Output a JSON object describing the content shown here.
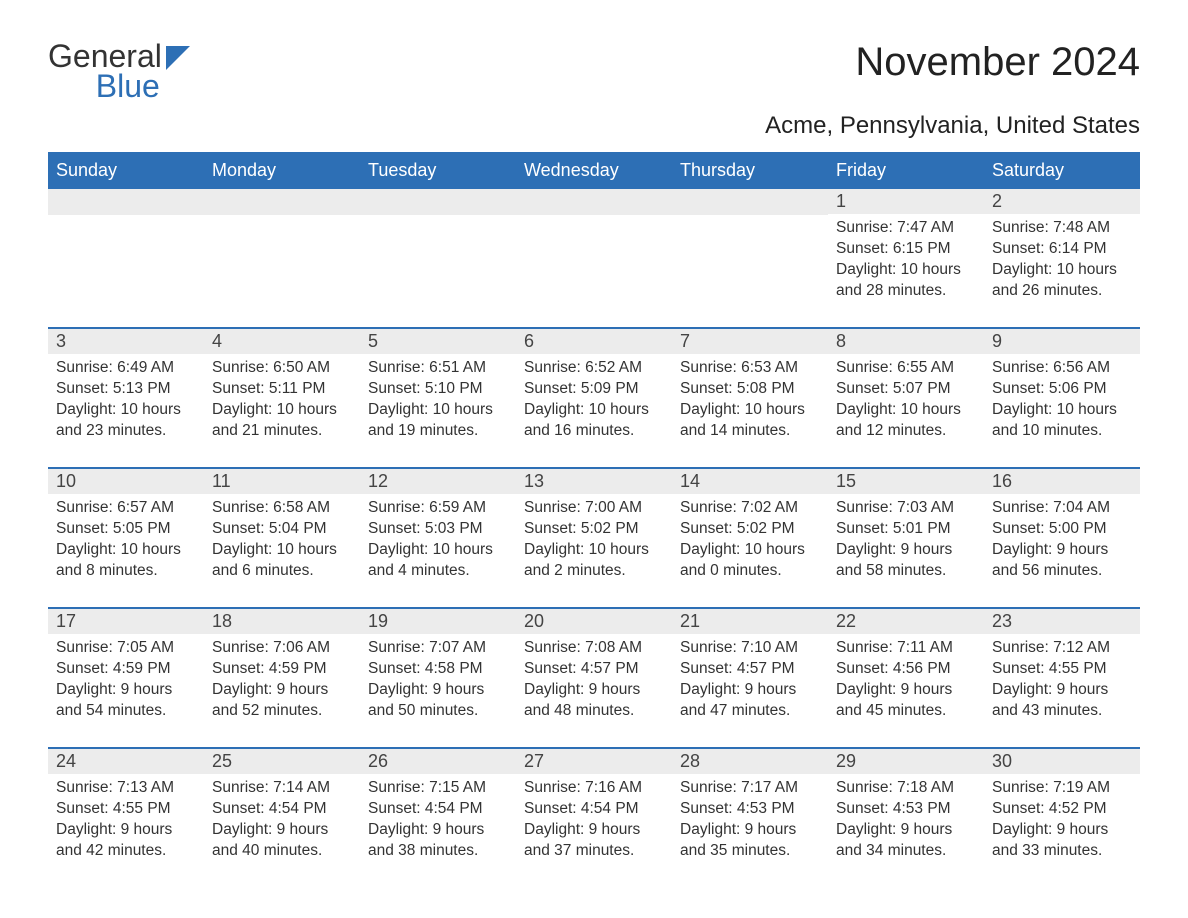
{
  "logo": {
    "word1": "General",
    "word2": "Blue"
  },
  "title": "November 2024",
  "location": "Acme, Pennsylvania, United States",
  "weekdays": [
    "Sunday",
    "Monday",
    "Tuesday",
    "Wednesday",
    "Thursday",
    "Friday",
    "Saturday"
  ],
  "sunrise_label": "Sunrise: ",
  "sunset_label": "Sunset: ",
  "daylight_label": "Daylight: ",
  "colors": {
    "header_bg": "#2d6fb5",
    "header_text": "#ffffff",
    "daynum_bg": "#ececec",
    "body_text": "#333333",
    "rule": "#2d6fb5"
  },
  "weeks": [
    [
      {
        "empty": true
      },
      {
        "empty": true
      },
      {
        "empty": true
      },
      {
        "empty": true
      },
      {
        "empty": true
      },
      {
        "n": "1",
        "sunrise": "7:47 AM",
        "sunset": "6:15 PM",
        "daylight": "10 hours and 28 minutes."
      },
      {
        "n": "2",
        "sunrise": "7:48 AM",
        "sunset": "6:14 PM",
        "daylight": "10 hours and 26 minutes."
      }
    ],
    [
      {
        "n": "3",
        "sunrise": "6:49 AM",
        "sunset": "5:13 PM",
        "daylight": "10 hours and 23 minutes."
      },
      {
        "n": "4",
        "sunrise": "6:50 AM",
        "sunset": "5:11 PM",
        "daylight": "10 hours and 21 minutes."
      },
      {
        "n": "5",
        "sunrise": "6:51 AM",
        "sunset": "5:10 PM",
        "daylight": "10 hours and 19 minutes."
      },
      {
        "n": "6",
        "sunrise": "6:52 AM",
        "sunset": "5:09 PM",
        "daylight": "10 hours and 16 minutes."
      },
      {
        "n": "7",
        "sunrise": "6:53 AM",
        "sunset": "5:08 PM",
        "daylight": "10 hours and 14 minutes."
      },
      {
        "n": "8",
        "sunrise": "6:55 AM",
        "sunset": "5:07 PM",
        "daylight": "10 hours and 12 minutes."
      },
      {
        "n": "9",
        "sunrise": "6:56 AM",
        "sunset": "5:06 PM",
        "daylight": "10 hours and 10 minutes."
      }
    ],
    [
      {
        "n": "10",
        "sunrise": "6:57 AM",
        "sunset": "5:05 PM",
        "daylight": "10 hours and 8 minutes."
      },
      {
        "n": "11",
        "sunrise": "6:58 AM",
        "sunset": "5:04 PM",
        "daylight": "10 hours and 6 minutes."
      },
      {
        "n": "12",
        "sunrise": "6:59 AM",
        "sunset": "5:03 PM",
        "daylight": "10 hours and 4 minutes."
      },
      {
        "n": "13",
        "sunrise": "7:00 AM",
        "sunset": "5:02 PM",
        "daylight": "10 hours and 2 minutes."
      },
      {
        "n": "14",
        "sunrise": "7:02 AM",
        "sunset": "5:02 PM",
        "daylight": "10 hours and 0 minutes."
      },
      {
        "n": "15",
        "sunrise": "7:03 AM",
        "sunset": "5:01 PM",
        "daylight": "9 hours and 58 minutes."
      },
      {
        "n": "16",
        "sunrise": "7:04 AM",
        "sunset": "5:00 PM",
        "daylight": "9 hours and 56 minutes."
      }
    ],
    [
      {
        "n": "17",
        "sunrise": "7:05 AM",
        "sunset": "4:59 PM",
        "daylight": "9 hours and 54 minutes."
      },
      {
        "n": "18",
        "sunrise": "7:06 AM",
        "sunset": "4:59 PM",
        "daylight": "9 hours and 52 minutes."
      },
      {
        "n": "19",
        "sunrise": "7:07 AM",
        "sunset": "4:58 PM",
        "daylight": "9 hours and 50 minutes."
      },
      {
        "n": "20",
        "sunrise": "7:08 AM",
        "sunset": "4:57 PM",
        "daylight": "9 hours and 48 minutes."
      },
      {
        "n": "21",
        "sunrise": "7:10 AM",
        "sunset": "4:57 PM",
        "daylight": "9 hours and 47 minutes."
      },
      {
        "n": "22",
        "sunrise": "7:11 AM",
        "sunset": "4:56 PM",
        "daylight": "9 hours and 45 minutes."
      },
      {
        "n": "23",
        "sunrise": "7:12 AM",
        "sunset": "4:55 PM",
        "daylight": "9 hours and 43 minutes."
      }
    ],
    [
      {
        "n": "24",
        "sunrise": "7:13 AM",
        "sunset": "4:55 PM",
        "daylight": "9 hours and 42 minutes."
      },
      {
        "n": "25",
        "sunrise": "7:14 AM",
        "sunset": "4:54 PM",
        "daylight": "9 hours and 40 minutes."
      },
      {
        "n": "26",
        "sunrise": "7:15 AM",
        "sunset": "4:54 PM",
        "daylight": "9 hours and 38 minutes."
      },
      {
        "n": "27",
        "sunrise": "7:16 AM",
        "sunset": "4:54 PM",
        "daylight": "9 hours and 37 minutes."
      },
      {
        "n": "28",
        "sunrise": "7:17 AM",
        "sunset": "4:53 PM",
        "daylight": "9 hours and 35 minutes."
      },
      {
        "n": "29",
        "sunrise": "7:18 AM",
        "sunset": "4:53 PM",
        "daylight": "9 hours and 34 minutes."
      },
      {
        "n": "30",
        "sunrise": "7:19 AM",
        "sunset": "4:52 PM",
        "daylight": "9 hours and 33 minutes."
      }
    ]
  ]
}
